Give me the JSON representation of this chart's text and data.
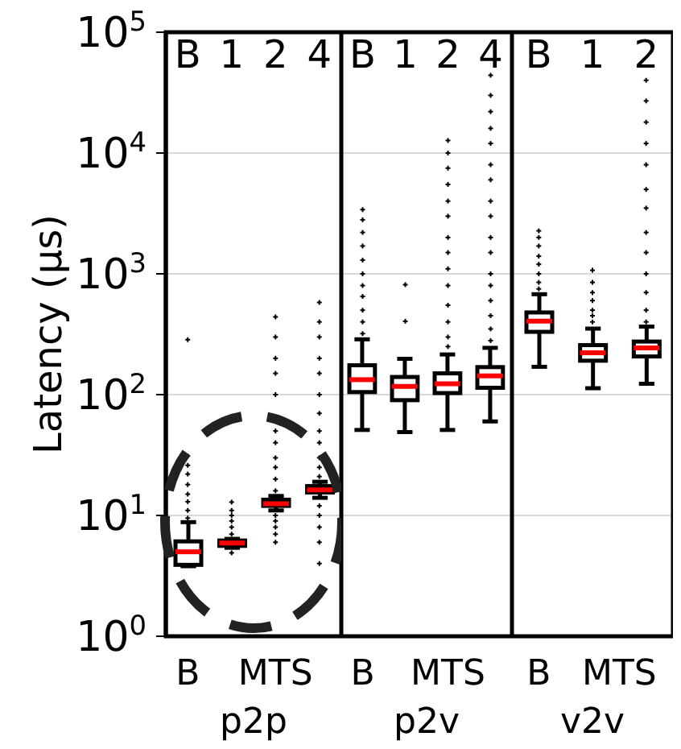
{
  "chart_data": [
    {
      "type": "box",
      "categories": [
        "B",
        "1",
        "2",
        "4"
      ],
      "color": "#000000",
      "log": true,
      "grid": "y",
      "ylim": [
        1,
        100000
      ],
      "yticks": [
        {
          "value": 1,
          "label": "10$^{0}$"
        },
        {
          "value": 10,
          "label": "10$^{1}$"
        },
        {
          "value": 100,
          "label": "10$^{2}$"
        },
        {
          "value": 1000,
          "label": "10$^{3}$"
        },
        {
          "value": 10000,
          "label": "10$^{4}$"
        },
        {
          "value": 100000,
          "label": "10$^{5}$"
        }
      ],
      "ylabel": "Latency (μs)",
      "xlabel": "p2p",
      "annotations": [
        "B",
        "MTS"
      ],
      "boxes": [
        {
          "low": 3.8,
          "q1": 3.9,
          "median": 5,
          "q3": 6.1,
          "high": 8.8,
          "outliers": [
            9.5,
            11,
            13,
            15,
            18,
            22,
            26,
            31,
            285
          ]
        },
        {
          "low": 5.4,
          "q1": 5.6,
          "median": 5.9,
          "q3": 6.2,
          "high": 6.4,
          "outliers": [
            4.9,
            7,
            8,
            9,
            10,
            11,
            12.9
          ]
        },
        {
          "low": 11,
          "q1": 12,
          "median": 12.5,
          "q3": 13.5,
          "high": 14.5,
          "outliers": [
            6,
            7,
            8,
            9,
            10,
            16,
            20,
            25,
            30,
            40,
            50,
            100,
            150,
            200,
            300,
            440
          ]
        },
        {
          "low": 14,
          "q1": 15.5,
          "median": 16.3,
          "q3": 17.5,
          "high": 19,
          "outliers": [
            4,
            6,
            8,
            10,
            12,
            21,
            25,
            30,
            40,
            50,
            70,
            100,
            150,
            200,
            300,
            400,
            580
          ]
        }
      ]
    },
    {
      "type": "box",
      "categories": [
        "B",
        "1",
        "2",
        "4"
      ],
      "color": "#000000",
      "log": true,
      "grid": "y",
      "ylim": [
        1,
        100000
      ],
      "tick_labels": "x",
      "yticks": [
        1,
        10,
        100,
        1000,
        10000,
        100000
      ],
      "xlabel": "p2v",
      "annotations": [
        "B",
        "MTS"
      ],
      "boxes": [
        {
          "low": 51,
          "q1": 105,
          "median": 133,
          "q3": 175,
          "high": 287,
          "outliers": [
            320,
            400,
            500,
            650,
            800,
            1000,
            1300,
            1700,
            2200,
            2800,
            3400
          ]
        },
        {
          "low": 49,
          "q1": 90,
          "median": 117,
          "q3": 140,
          "high": 198,
          "outliers": [
            405,
            813
          ]
        },
        {
          "low": 51,
          "q1": 103,
          "median": 123,
          "q3": 150,
          "high": 215,
          "outliers": [
            250,
            300,
            400,
            550,
            800,
            1100,
            1500,
            2000,
            3000,
            4000,
            5500,
            7500,
            10000,
            12700
          ]
        },
        {
          "low": 60,
          "q1": 114,
          "median": 143,
          "q3": 169,
          "high": 244,
          "outliers": [
            280,
            350,
            450,
            600,
            800,
            1000,
            1500,
            2000,
            3000,
            4000,
            6000,
            8000,
            12000,
            16000,
            22000,
            30000,
            44000
          ]
        }
      ]
    },
    {
      "type": "box",
      "categories": [
        "B",
        "1",
        "2"
      ],
      "color": "#000000",
      "log": true,
      "grid": "y",
      "ylim": [
        1,
        100000
      ],
      "tick_labels": "x",
      "yticks": [
        1,
        10,
        100,
        1000,
        10000,
        100000
      ],
      "xlabel": "v2v",
      "annotations": [
        "B",
        "MTS"
      ],
      "boxes": [
        {
          "low": 170,
          "q1": 331,
          "median": 406,
          "q3": 479,
          "high": 678,
          "outliers": [
            750,
            850,
            1000,
            1200,
            1400,
            1700,
            2000,
            2270
          ]
        },
        {
          "low": 113,
          "q1": 191,
          "median": 222,
          "q3": 257,
          "high": 352,
          "outliers": [
            400,
            450,
            500,
            600,
            700,
            850,
            1070
          ]
        },
        {
          "low": 123,
          "q1": 207,
          "median": 244,
          "q3": 275,
          "high": 366,
          "outliers": [
            400,
            500,
            700,
            1000,
            1500,
            2200,
            3500,
            5000,
            8000,
            12000,
            18000,
            27000,
            40000
          ]
        }
      ]
    }
  ]
}
